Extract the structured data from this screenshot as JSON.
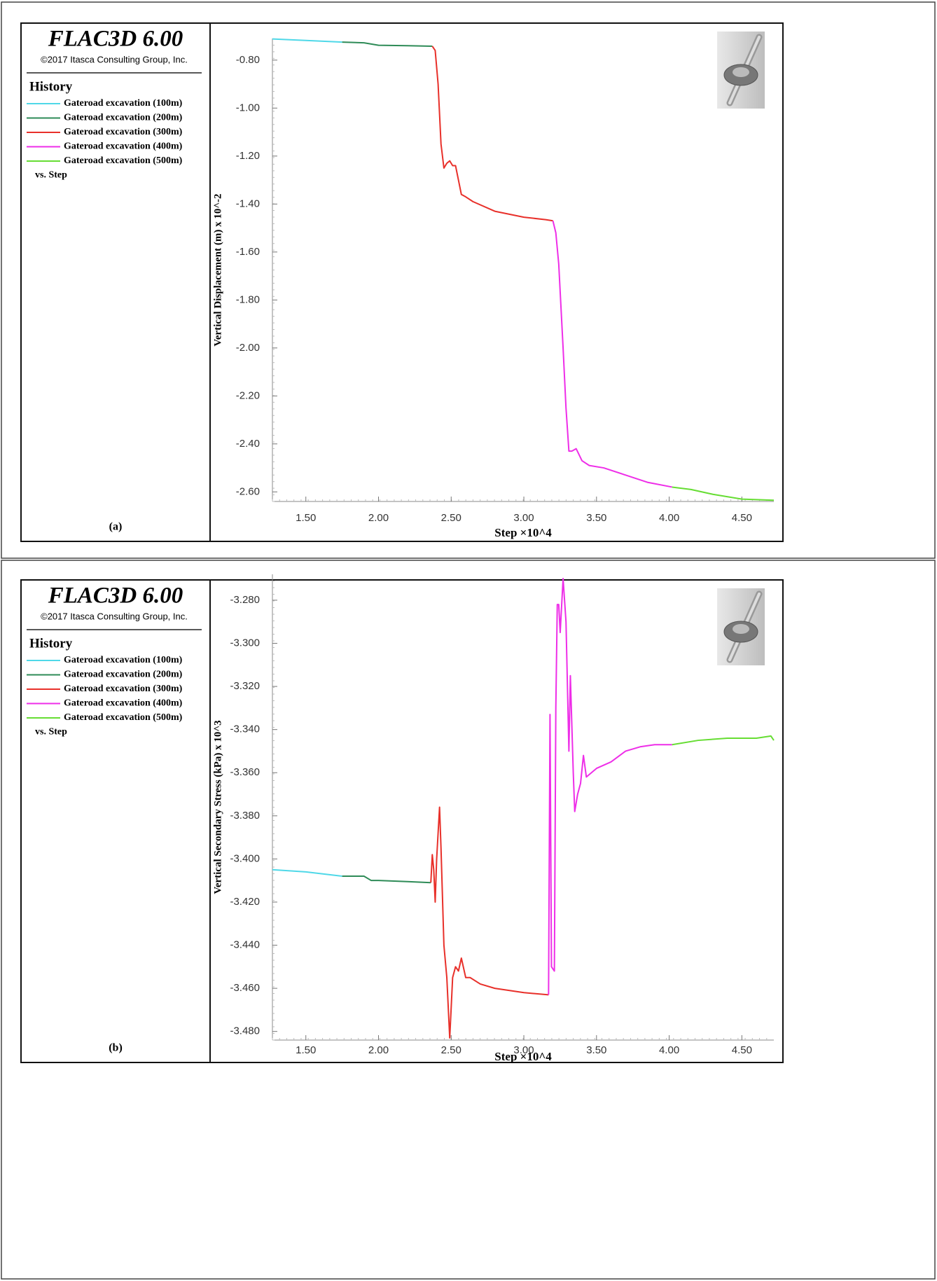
{
  "chart_data": [
    {
      "type": "line",
      "title": "FLAC3D 6.00",
      "subtitle": "©2017 Itasca Consulting Group, Inc.",
      "legend_title": "History",
      "legend_footer": "vs. Step",
      "panel_label": "(a)",
      "y_label": "Vertical Displacement (m) x 10^-2",
      "x_label": "Step ×10^4",
      "xlim": [
        1.27,
        4.72
      ],
      "ylim": [
        -2.64,
        -0.71
      ],
      "xticks": [
        {
          "value": 1.5,
          "label": "1.50"
        },
        {
          "value": 2.0,
          "label": "2.00"
        },
        {
          "value": 2.5,
          "label": "2.50"
        },
        {
          "value": 3.0,
          "label": "3.00"
        },
        {
          "value": 3.5,
          "label": "3.50"
        },
        {
          "value": 4.0,
          "label": "4.00"
        },
        {
          "value": 4.5,
          "label": "4.50"
        }
      ],
      "yticks": [
        {
          "value": -0.8,
          "label": "-0.80"
        },
        {
          "value": -1.0,
          "label": "-1.00"
        },
        {
          "value": -1.2,
          "label": "-1.20"
        },
        {
          "value": -1.4,
          "label": "-1.40"
        },
        {
          "value": -1.6,
          "label": "-1.60"
        },
        {
          "value": -1.8,
          "label": "-1.80"
        },
        {
          "value": -2.0,
          "label": "-2.00"
        },
        {
          "value": -2.2,
          "label": "-2.20"
        },
        {
          "value": -2.4,
          "label": "-2.40"
        },
        {
          "value": -2.6,
          "label": "-2.60"
        }
      ],
      "series": [
        {
          "name": "Gateroad excavation (100m)",
          "color": "#4fd8e8",
          "x": [
            1.27,
            1.5,
            1.75
          ],
          "values": [
            -0.712,
            -0.718,
            -0.725
          ]
        },
        {
          "name": "Gateroad excavation (200m)",
          "color": "#2e8b57",
          "x": [
            1.75,
            1.9,
            2.0,
            2.2,
            2.37
          ],
          "values": [
            -0.725,
            -0.728,
            -0.738,
            -0.74,
            -0.742
          ]
        },
        {
          "name": "Gateroad excavation (300m)",
          "color": "#e8302a",
          "x": [
            2.37,
            2.39,
            2.41,
            2.43,
            2.45,
            2.47,
            2.49,
            2.51,
            2.53,
            2.55,
            2.57,
            2.6,
            2.65,
            2.8,
            3.0,
            3.15,
            3.2
          ],
          "values": [
            -0.742,
            -0.76,
            -0.9,
            -1.15,
            -1.25,
            -1.23,
            -1.22,
            -1.24,
            -1.24,
            -1.3,
            -1.36,
            -1.37,
            -1.39,
            -1.43,
            -1.455,
            -1.465,
            -1.47
          ]
        },
        {
          "name": "Gateroad excavation (400m)",
          "color": "#ee2ee8",
          "x": [
            3.2,
            3.22,
            3.24,
            3.27,
            3.29,
            3.31,
            3.33,
            3.36,
            3.4,
            3.45,
            3.55,
            3.7,
            3.85,
            4.02
          ],
          "values": [
            -1.47,
            -1.52,
            -1.65,
            -2.0,
            -2.25,
            -2.43,
            -2.43,
            -2.42,
            -2.47,
            -2.49,
            -2.5,
            -2.53,
            -2.56,
            -2.58
          ]
        },
        {
          "name": "Gateroad excavation (500m)",
          "color": "#66dd33",
          "x": [
            4.02,
            4.15,
            4.3,
            4.5,
            4.72
          ],
          "values": [
            -2.58,
            -2.59,
            -2.61,
            -2.63,
            -2.635
          ]
        }
      ]
    },
    {
      "type": "line",
      "title": "FLAC3D 6.00",
      "subtitle": "©2017 Itasca Consulting Group, Inc.",
      "legend_title": "History",
      "legend_footer": "vs. Step",
      "panel_label": "(b)",
      "y_label": "Vertical Secondary Stress (kPa) x 10^3",
      "x_label": "Step ×10^4",
      "xlim": [
        1.27,
        4.72
      ],
      "ylim": [
        -3.484,
        -3.268
      ],
      "xticks": [
        {
          "value": 1.5,
          "label": "1.50"
        },
        {
          "value": 2.0,
          "label": "2.00"
        },
        {
          "value": 2.5,
          "label": "2.50"
        },
        {
          "value": 3.0,
          "label": "3.00"
        },
        {
          "value": 3.5,
          "label": "3.50"
        },
        {
          "value": 4.0,
          "label": "4.00"
        },
        {
          "value": 4.5,
          "label": "4.50"
        }
      ],
      "yticks": [
        {
          "value": -3.28,
          "label": "-3.280"
        },
        {
          "value": -3.3,
          "label": "-3.300"
        },
        {
          "value": -3.32,
          "label": "-3.320"
        },
        {
          "value": -3.34,
          "label": "-3.340"
        },
        {
          "value": -3.36,
          "label": "-3.360"
        },
        {
          "value": -3.38,
          "label": "-3.380"
        },
        {
          "value": -3.4,
          "label": "-3.400"
        },
        {
          "value": -3.42,
          "label": "-3.420"
        },
        {
          "value": -3.44,
          "label": "-3.440"
        },
        {
          "value": -3.46,
          "label": "-3.460"
        },
        {
          "value": -3.48,
          "label": "-3.480"
        }
      ],
      "series": [
        {
          "name": "Gateroad excavation (100m)",
          "color": "#4fd8e8",
          "x": [
            1.27,
            1.5,
            1.75
          ],
          "values": [
            -3.405,
            -3.406,
            -3.408
          ]
        },
        {
          "name": "Gateroad excavation (200m)",
          "color": "#2e8b57",
          "x": [
            1.75,
            1.9,
            1.95,
            2.0,
            2.2,
            2.36
          ],
          "values": [
            -3.408,
            -3.408,
            -3.41,
            -3.41,
            -3.4105,
            -3.411
          ]
        },
        {
          "name": "Gateroad excavation (300m)",
          "color": "#e8302a",
          "x": [
            2.36,
            2.37,
            2.38,
            2.39,
            2.4,
            2.42,
            2.43,
            2.45,
            2.47,
            2.49,
            2.51,
            2.53,
            2.55,
            2.57,
            2.6,
            2.63,
            2.7,
            2.8,
            3.0,
            3.17
          ],
          "values": [
            -3.411,
            -3.398,
            -3.405,
            -3.42,
            -3.4,
            -3.376,
            -3.395,
            -3.44,
            -3.455,
            -3.483,
            -3.455,
            -3.45,
            -3.452,
            -3.446,
            -3.455,
            -3.455,
            -3.458,
            -3.46,
            -3.462,
            -3.463
          ]
        },
        {
          "name": "Gateroad excavation (400m)",
          "color": "#ee2ee8",
          "x": [
            3.17,
            3.18,
            3.19,
            3.21,
            3.22,
            3.23,
            3.24,
            3.25,
            3.27,
            3.29,
            3.31,
            3.32,
            3.34,
            3.35,
            3.37,
            3.39,
            3.41,
            3.43,
            3.5,
            3.6,
            3.7,
            3.8,
            3.9,
            4.02
          ],
          "values": [
            -3.463,
            -3.333,
            -3.45,
            -3.452,
            -3.33,
            -3.282,
            -3.282,
            -3.295,
            -3.27,
            -3.29,
            -3.35,
            -3.315,
            -3.36,
            -3.378,
            -3.37,
            -3.365,
            -3.352,
            -3.362,
            -3.358,
            -3.355,
            -3.35,
            -3.348,
            -3.347,
            -3.347
          ]
        },
        {
          "name": "Gateroad excavation (500m)",
          "color": "#66dd33",
          "x": [
            4.02,
            4.2,
            4.4,
            4.6,
            4.7,
            4.72
          ],
          "values": [
            -3.347,
            -3.345,
            -3.344,
            -3.344,
            -3.343,
            -3.345
          ]
        }
      ]
    }
  ]
}
